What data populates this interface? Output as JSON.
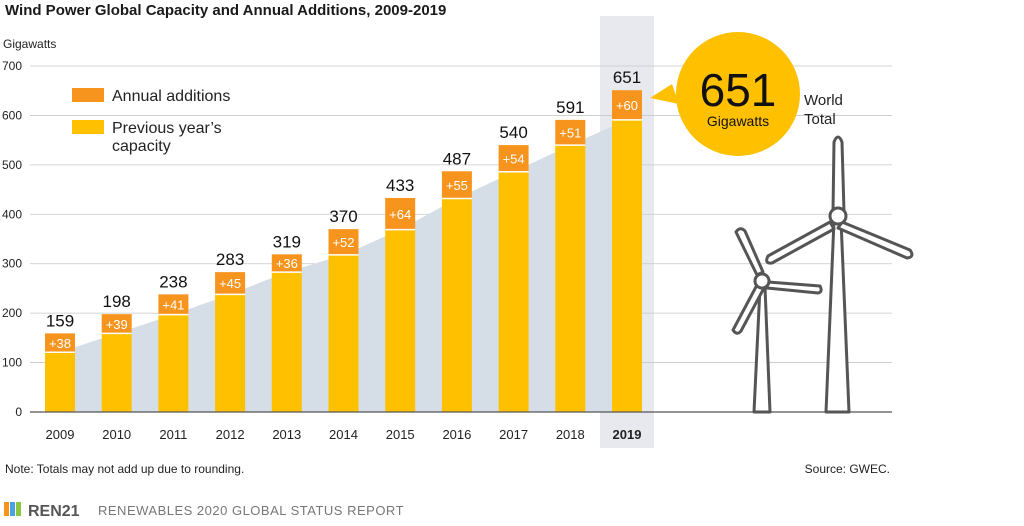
{
  "chart_data": {
    "type": "bar",
    "title": "Wind Power Global Capacity and Annual Additions, 2009-2019",
    "ylabel": "Gigawatts",
    "ylim": [
      0,
      700
    ],
    "yticks": [
      "0",
      "100",
      "200",
      "300",
      "400",
      "500",
      "600",
      "700"
    ],
    "categories": [
      "2009",
      "2010",
      "2011",
      "2012",
      "2013",
      "2014",
      "2015",
      "2016",
      "2017",
      "2018",
      "2019"
    ],
    "totals": [
      159,
      198,
      238,
      283,
      319,
      370,
      433,
      487,
      540,
      591,
      651
    ],
    "series": [
      {
        "name": "Previous year’s capacity",
        "values": [
          121,
          159,
          197,
          238,
          283,
          318,
          369,
          432,
          486,
          540,
          591
        ],
        "color": "#ffc000"
      },
      {
        "name": "Annual additions",
        "values": [
          38,
          39,
          41,
          45,
          36,
          52,
          64,
          55,
          54,
          51,
          60
        ],
        "color": "#f7941d"
      }
    ],
    "addition_labels": [
      "+38",
      "+39",
      "+41",
      "+45",
      "+36",
      "+52",
      "+64",
      "+55",
      "+54",
      "+51",
      "+60"
    ],
    "highlight_year": "2019",
    "legend": {
      "additions_label": "Annual additions",
      "previous_line1": "Previous year’s",
      "previous_line2": "capacity"
    },
    "callout": {
      "value": "651",
      "unit": "Gigawatts",
      "side_line1": "World",
      "side_line2": "Total"
    },
    "note": "Note: Totals may not add up due to rounding.",
    "source": "Source: GWEC."
  },
  "footer": {
    "brand": "REN21",
    "report": "RENEWABLES 2020 GLOBAL STATUS REPORT"
  },
  "colors": {
    "previous": "#ffc000",
    "additions": "#f7941d",
    "area": "#d5dde6",
    "highlight": "#e8e9ee",
    "grid": "#c8c8c8"
  }
}
